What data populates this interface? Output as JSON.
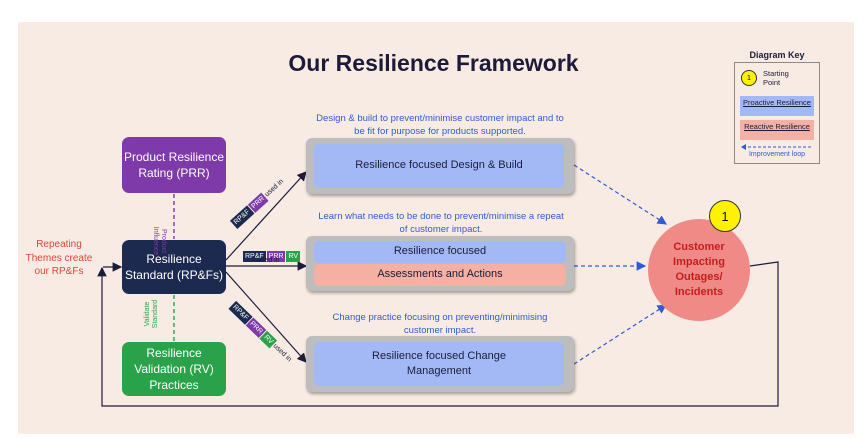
{
  "title": "Our Resilience Framework",
  "left_note": "Repeating Themes create our RP&Fs",
  "nodes": {
    "prr": "Product Resilience Rating (PRR)",
    "rs": "Resilience Standard (RP&Fs)",
    "rv": "Resilience Validation (RV) Practices"
  },
  "vertical_labels": {
    "product_influence": "Product Influence",
    "validate_standard": "Validate Standard"
  },
  "connector_tags": {
    "rpf": "RP&F",
    "prr": "PRR",
    "rv": "RV",
    "used_in": "used in"
  },
  "lanes": {
    "top": {
      "description": "Design & build to prevent/minimise customer impact and to be fit for purpose for products supported.",
      "box": "Resilience focused Design & Build"
    },
    "middle": {
      "description": "Learn what needs to be done to prevent/minimise a repeat of customer impact.",
      "box_top": "Resilience focused",
      "box_bottom": "Assessments and Actions"
    },
    "bottom": {
      "description": "Change practice focusing on preventing/minimising customer impact.",
      "box": "Resilience focused Change Management"
    }
  },
  "outcome": {
    "label": "Customer Impacting Outages/ Incidents",
    "badge": "1"
  },
  "key": {
    "title": "Diagram Key",
    "starting_point_badge": "1",
    "starting_point": "Starting Point",
    "proactive": "Proactive Resilience",
    "reactive": "Reactive Resilience",
    "improvement": "Improvement loop"
  },
  "colors": {
    "background": "#f8ebe3",
    "prr": "#7d3aa8",
    "standard": "#1d2a4f",
    "validation": "#2aa24a",
    "proactive": "#a3b9f5",
    "reactive": "#f3b0a3",
    "outcome": "#f08a86",
    "arrow_blue": "#2f5bd6",
    "note_red": "#e0453a"
  }
}
